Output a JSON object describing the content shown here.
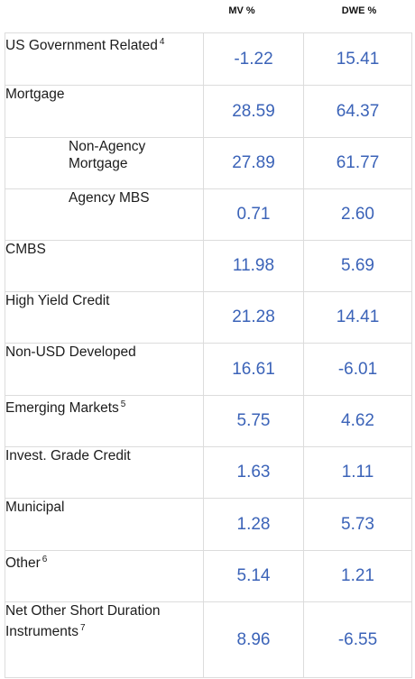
{
  "columns": {
    "mv": "MV %",
    "dwe": "DWE %"
  },
  "rows": [
    {
      "label": "US Government Related",
      "note": "4",
      "mv": "-1.22",
      "dwe": "15.41",
      "indent": false
    },
    {
      "label": "Mortgage",
      "note": "",
      "mv": "28.59",
      "dwe": "64.37",
      "indent": false
    },
    {
      "label": "Non-Agency Mortgage",
      "note": "",
      "mv": "27.89",
      "dwe": "61.77",
      "indent": true
    },
    {
      "label": "Agency MBS",
      "note": "",
      "mv": "0.71",
      "dwe": "2.60",
      "indent": true
    },
    {
      "label": "CMBS",
      "note": "",
      "mv": "11.98",
      "dwe": "5.69",
      "indent": false
    },
    {
      "label": "High Yield Credit",
      "note": "",
      "mv": "21.28",
      "dwe": "14.41",
      "indent": false
    },
    {
      "label": "Non-USD Developed",
      "note": "",
      "mv": "16.61",
      "dwe": "-6.01",
      "indent": false
    },
    {
      "label": "Emerging Markets",
      "note": "5",
      "mv": "5.75",
      "dwe": "4.62",
      "indent": false
    },
    {
      "label": "Invest. Grade Credit",
      "note": "",
      "mv": "1.63",
      "dwe": "1.11",
      "indent": false
    },
    {
      "label": "Municipal",
      "note": "",
      "mv": "1.28",
      "dwe": "5.73",
      "indent": false
    },
    {
      "label": "Other",
      "note": "6",
      "mv": "5.14",
      "dwe": "1.21",
      "indent": false
    },
    {
      "label": "Net Other Short Duration Instruments",
      "note": "7",
      "mv": "8.96",
      "dwe": "-6.55",
      "indent": false
    }
  ]
}
